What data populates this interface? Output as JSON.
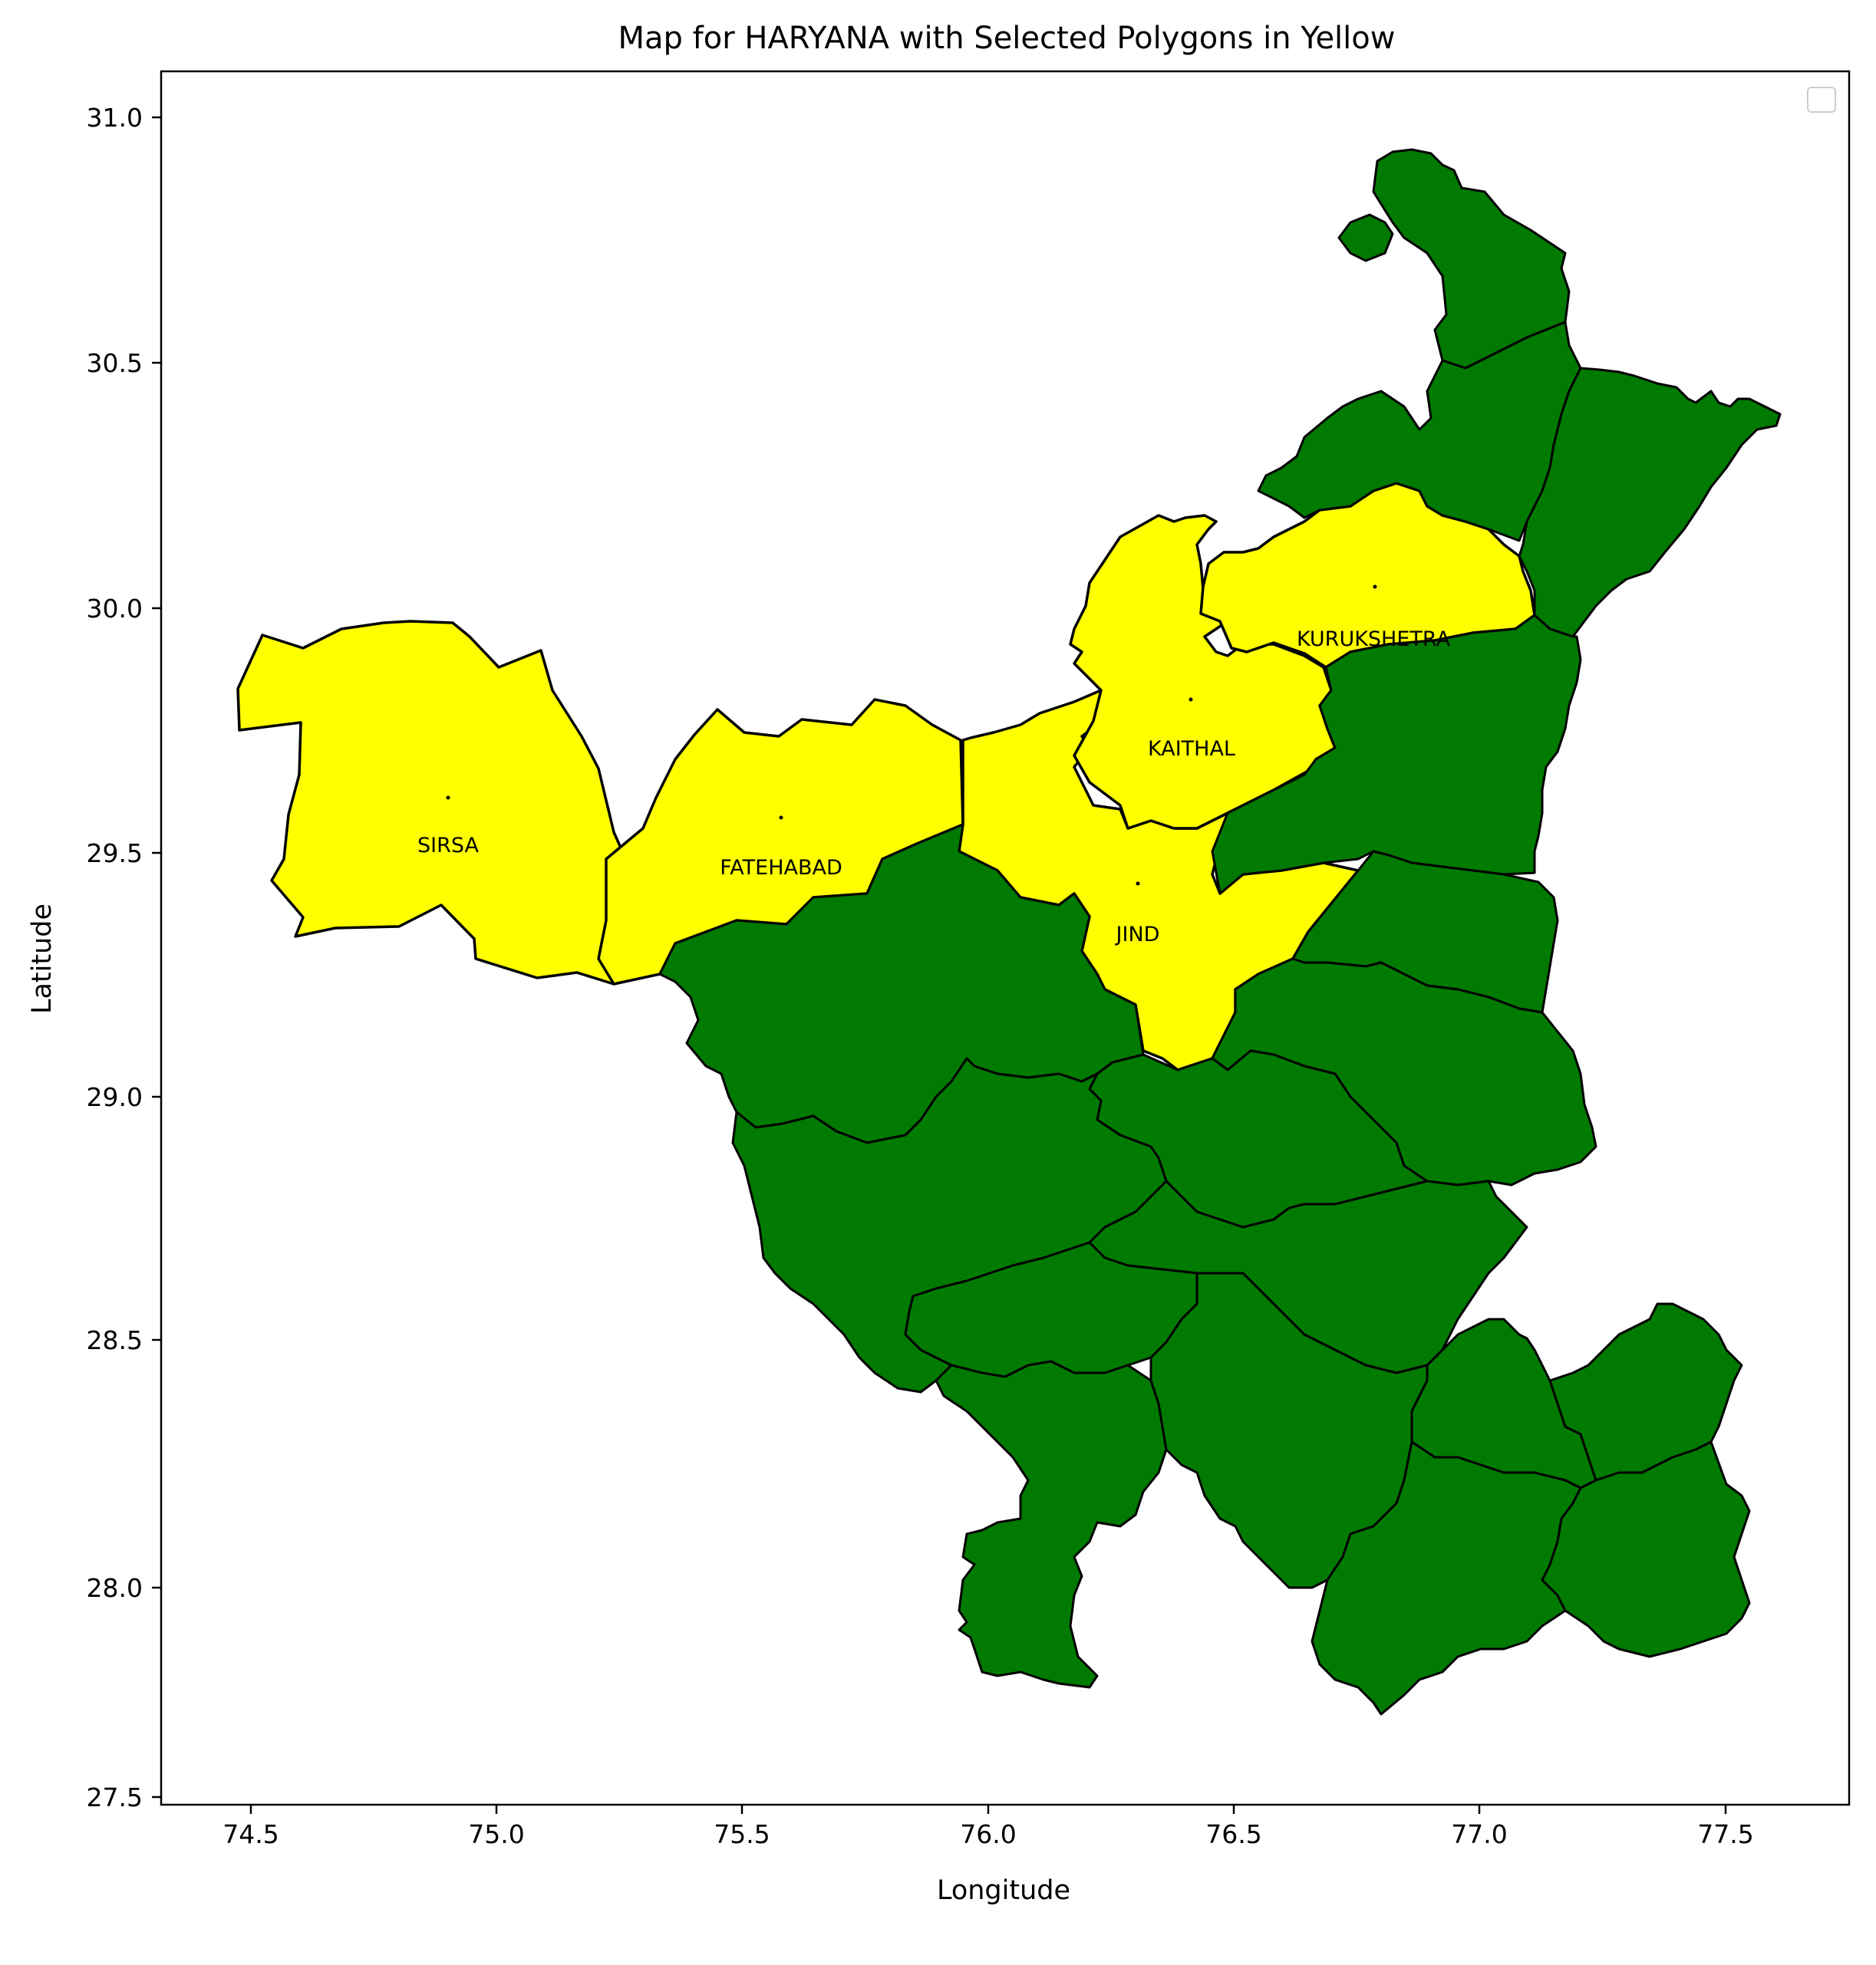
{
  "chart_data": {
    "type": "map",
    "title": "Map for HARYANA with Selected Polygons in Yellow",
    "xlabel": "Longitude",
    "ylabel": "Latitude",
    "xlim": [
      74.33,
      77.77
    ],
    "ylim": [
      27.48,
      31.1
    ],
    "xticks": [
      "74.5",
      "75.0",
      "75.5",
      "76.0",
      "76.5",
      "77.0",
      "77.5"
    ],
    "yticks": [
      "27.5",
      "28.0",
      "28.5",
      "29.0",
      "29.5",
      "30.0",
      "30.5",
      "31.0"
    ],
    "legend": {
      "placement": "top-right",
      "entries": []
    },
    "colors": {
      "selected": "#ffff00",
      "other": "#007a00",
      "edge": "#000000"
    },
    "selected_districts": [
      {
        "name": "SIRSA",
        "lon": 74.9,
        "lat": 29.51
      },
      {
        "name": "FATEHABAD",
        "lon": 75.57,
        "lat": 29.46
      },
      {
        "name": "KAITHAL",
        "lon": 76.41,
        "lat": 29.7
      },
      {
        "name": "JIND",
        "lon": 76.3,
        "lat": 29.32
      },
      {
        "name": "KURUKSHETRA",
        "lon": 76.78,
        "lat": 29.94
      }
    ]
  }
}
